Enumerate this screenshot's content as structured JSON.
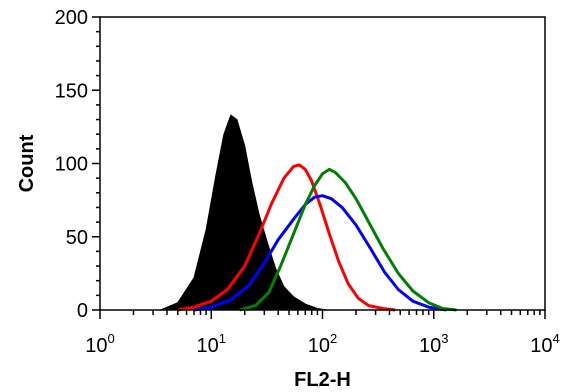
{
  "chart_data": {
    "type": "area",
    "title": "",
    "xlabel": "FL2-H",
    "ylabel": "Count",
    "x_scale": "log",
    "xlim": [
      1,
      10000
    ],
    "ylim": [
      0,
      200
    ],
    "x_ticks": [
      {
        "base": "10",
        "exp": "0",
        "value": 1
      },
      {
        "base": "10",
        "exp": "1",
        "value": 10
      },
      {
        "base": "10",
        "exp": "2",
        "value": 100
      },
      {
        "base": "10",
        "exp": "3",
        "value": 1000
      },
      {
        "base": "10",
        "exp": "4",
        "value": 10000
      }
    ],
    "y_ticks": [
      {
        "label": "0",
        "value": 0
      },
      {
        "label": "50",
        "value": 50
      },
      {
        "label": "100",
        "value": 100
      },
      {
        "label": "150",
        "value": 150
      },
      {
        "label": "200",
        "value": 200
      }
    ],
    "grid": false,
    "series": [
      {
        "style": "filled",
        "color": "#000000",
        "x": [
          3.5,
          5,
          7,
          9,
          11,
          13,
          15,
          17,
          20,
          23,
          27,
          32,
          38,
          45,
          55,
          70,
          90,
          110
        ],
        "y": [
          0,
          5,
          22,
          55,
          92,
          120,
          133,
          130,
          112,
          88,
          65,
          46,
          28,
          16,
          9,
          4,
          1,
          0
        ]
      },
      {
        "style": "line",
        "color": "#ff0000",
        "x": [
          5,
          7,
          10,
          14,
          20,
          27,
          35,
          45,
          55,
          62,
          70,
          80,
          95,
          115,
          140,
          170,
          210,
          260,
          350,
          450
        ],
        "y": [
          0,
          2,
          6,
          14,
          30,
          52,
          73,
          90,
          98,
          99,
          96,
          88,
          72,
          52,
          33,
          18,
          8,
          3,
          1,
          0
        ]
      },
      {
        "style": "line",
        "color": "#0000ff",
        "x": [
          7,
          10,
          15,
          22,
          30,
          40,
          55,
          70,
          85,
          100,
          120,
          150,
          200,
          270,
          360,
          480,
          650,
          900,
          1300
        ],
        "y": [
          0,
          2,
          7,
          17,
          32,
          48,
          62,
          72,
          77,
          78,
          76,
          70,
          58,
          42,
          26,
          14,
          6,
          2,
          0
        ]
      },
      {
        "style": "line",
        "color": "#008000",
        "x": [
          18,
          25,
          33,
          42,
          55,
          70,
          85,
          100,
          115,
          130,
          160,
          200,
          260,
          350,
          480,
          650,
          900,
          1200,
          1600
        ],
        "y": [
          0,
          3,
          12,
          30,
          52,
          72,
          85,
          93,
          96,
          94,
          87,
          76,
          60,
          42,
          25,
          13,
          5,
          1,
          0
        ]
      }
    ]
  }
}
